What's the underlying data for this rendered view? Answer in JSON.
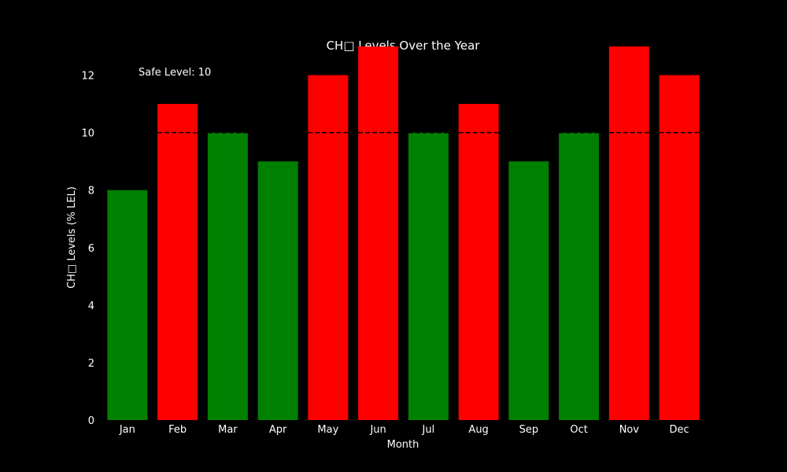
{
  "chart_data": {
    "type": "bar",
    "title": "CH□ Levels Over the Year",
    "xlabel": "Month",
    "ylabel": "CH□ Levels (% LEL)",
    "categories": [
      "Jan",
      "Feb",
      "Mar",
      "Apr",
      "May",
      "Jun",
      "Jul",
      "Aug",
      "Sep",
      "Oct",
      "Nov",
      "Dec"
    ],
    "values": [
      8,
      11,
      10,
      9,
      12,
      13,
      10,
      11,
      9,
      10,
      13,
      12
    ],
    "ylim": [
      0,
      13
    ],
    "yticks": [
      0,
      2,
      4,
      6,
      8,
      10,
      12
    ],
    "safe_level": 10,
    "annotation": "Safe Level: 10",
    "grid": false,
    "colors": {
      "background": "#000000",
      "text": "#ffffff",
      "safe_bar": "#008000",
      "unsafe_bar": "#ff0000",
      "threshold_line": "#000000"
    }
  }
}
